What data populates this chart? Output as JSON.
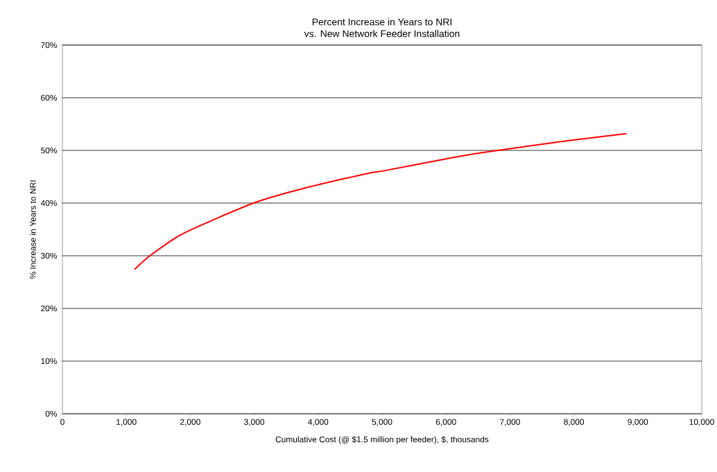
{
  "chart_data": {
    "type": "line",
    "title": "Percent Increase in Years to NRI",
    "subtitle": "vs. New Network Feeder Installation",
    "xlabel": "Cumulative Cost (@ $1.5 million per feeder), $, thousands",
    "ylabel": "% Increase in Years to NRI",
    "x": [
      1128,
      1369,
      1886,
      2988,
      3807,
      4803,
      5016,
      6000,
      6581,
      7826,
      8823
    ],
    "series": [
      {
        "color": "#ff0000",
        "values": [
          27.4,
          30.0,
          34.2,
          40.0,
          42.9,
          45.7,
          46.1,
          48.4,
          49.6,
          51.7,
          53.2
        ]
      }
    ],
    "xlim": [
      0,
      10000
    ],
    "ylim": [
      0,
      70
    ],
    "xticks": [
      {
        "value": 0,
        "label": "0"
      },
      {
        "value": 1000,
        "label": "1,000"
      },
      {
        "value": 2000,
        "label": "2,000"
      },
      {
        "value": 3000,
        "label": "3,000"
      },
      {
        "value": 4000,
        "label": "4,000"
      },
      {
        "value": 5000,
        "label": "5,000"
      },
      {
        "value": 6000,
        "label": "6,000"
      },
      {
        "value": 7000,
        "label": "7,000"
      },
      {
        "value": 8000,
        "label": "8,000"
      },
      {
        "value": 9000,
        "label": "9,000"
      },
      {
        "value": 10000,
        "label": "10,000"
      }
    ],
    "yticks": [
      {
        "value": 0,
        "label": "0%"
      },
      {
        "value": 10,
        "label": "10%"
      },
      {
        "value": 20,
        "label": "20%"
      },
      {
        "value": 30,
        "label": "30%"
      },
      {
        "value": 40,
        "label": "40%"
      },
      {
        "value": 50,
        "label": "50%"
      },
      {
        "value": 60,
        "label": "60%"
      },
      {
        "value": 70,
        "label": "70%"
      }
    ],
    "grid": "y",
    "marker": "none",
    "line_style": "solid"
  }
}
